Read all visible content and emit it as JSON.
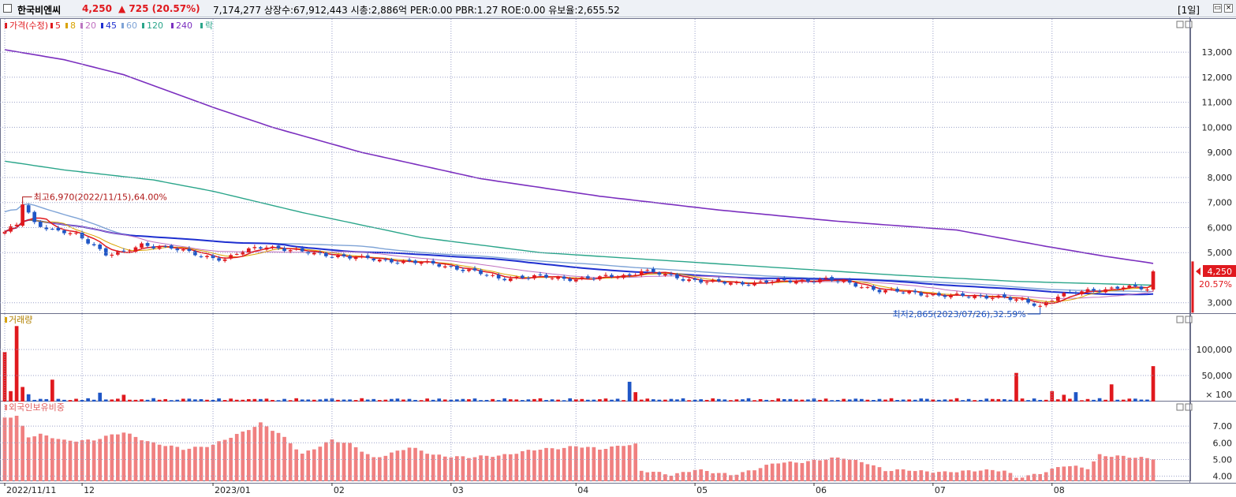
{
  "header": {
    "stock_name": "한국비엔씨",
    "price": "4,250",
    "change": "▲ 725 (20.57%)",
    "stats": "7,174,277  상장수:67,912,443 시총:2,886억 PER:0.00 PBR:1.27 ROE:0.00 유보율:2,655.52",
    "period": "[1일]"
  },
  "colors": {
    "up": "#e0191e",
    "down": "#1f56c6",
    "ma5": "#e0191e",
    "ma8": "#d9a300",
    "ma20": "#c070c0",
    "ma45": "#1e2fd0",
    "ma60": "#7ea3d6",
    "ma120": "#2aa58a",
    "ma240": "#7b2fbf",
    "foreign": "#f08080",
    "grid": "#9aa0c8"
  },
  "chart_data": [
    {
      "type": "line",
      "legend": [
        {
          "label": "가격(수정)",
          "color": "#e0191e"
        },
        {
          "label": "5",
          "color": "#e0191e"
        },
        {
          "label": "8",
          "color": "#d9a300"
        },
        {
          "label": "20",
          "color": "#c070c0"
        },
        {
          "label": "45",
          "color": "#1e2fd0"
        },
        {
          "label": "60",
          "color": "#7ea3d6"
        },
        {
          "label": "120",
          "color": "#2aa58a"
        },
        {
          "label": "240",
          "color": "#7b2fbf"
        },
        {
          "label": "락",
          "color": "#2aa58a"
        }
      ],
      "y_ticks": [
        "13,000",
        "12,000",
        "11,000",
        "10,000",
        "9,000",
        "8,000",
        "7,000",
        "6,000",
        "5,000",
        "3,000"
      ],
      "y_tick_values": [
        13000,
        12000,
        11000,
        10000,
        9000,
        8000,
        7000,
        6000,
        5000,
        3000
      ],
      "ylim": [
        2550,
        13950
      ],
      "x_tick_labels": [
        "2022/11/11",
        "12",
        "2023/01",
        "02",
        "03",
        "04",
        "05",
        "06",
        "07",
        "08"
      ],
      "x_tick_index": [
        0,
        13,
        35,
        55,
        75,
        96,
        116,
        136,
        156,
        176
      ],
      "sessions": 194,
      "series": {
        "close_waypoints": [
          [
            0,
            5800
          ],
          [
            2,
            6100
          ],
          [
            3,
            6970
          ],
          [
            5,
            6200
          ],
          [
            8,
            5900
          ],
          [
            12,
            5700
          ],
          [
            15,
            5300
          ],
          [
            17,
            4950
          ],
          [
            20,
            5000
          ],
          [
            23,
            5300
          ],
          [
            28,
            5200
          ],
          [
            33,
            4850
          ],
          [
            37,
            4750
          ],
          [
            40,
            5050
          ],
          [
            44,
            5250
          ],
          [
            47,
            5150
          ],
          [
            52,
            4950
          ],
          [
            57,
            4850
          ],
          [
            63,
            4700
          ],
          [
            67,
            4650
          ],
          [
            70,
            4600
          ],
          [
            73,
            4500
          ],
          [
            78,
            4300
          ],
          [
            83,
            3950
          ],
          [
            85,
            4000
          ],
          [
            89,
            4050
          ],
          [
            94,
            3950
          ],
          [
            100,
            4000
          ],
          [
            105,
            4100
          ],
          [
            107,
            4300
          ],
          [
            110,
            4150
          ],
          [
            114,
            3950
          ],
          [
            118,
            3850
          ],
          [
            123,
            3750
          ],
          [
            128,
            3850
          ],
          [
            133,
            3850
          ],
          [
            138,
            3950
          ],
          [
            142,
            3750
          ],
          [
            147,
            3500
          ],
          [
            152,
            3400
          ],
          [
            157,
            3300
          ],
          [
            162,
            3250
          ],
          [
            167,
            3250
          ],
          [
            172,
            3000
          ],
          [
            174,
            2865
          ],
          [
            177,
            3300
          ],
          [
            180,
            3400
          ],
          [
            185,
            3550
          ],
          [
            188,
            3650
          ],
          [
            192,
            3525
          ],
          [
            193,
            4250
          ]
        ],
        "ma120_waypoints": [
          [
            0,
            8650
          ],
          [
            10,
            8300
          ],
          [
            25,
            7900
          ],
          [
            35,
            7450
          ],
          [
            50,
            6600
          ],
          [
            70,
            5600
          ],
          [
            90,
            5000
          ],
          [
            110,
            4700
          ],
          [
            130,
            4400
          ],
          [
            150,
            4100
          ],
          [
            170,
            3850
          ],
          [
            193,
            3700
          ]
        ],
        "ma240_waypoints": [
          [
            0,
            13100
          ],
          [
            10,
            12700
          ],
          [
            20,
            12100
          ],
          [
            35,
            10800
          ],
          [
            45,
            10000
          ],
          [
            60,
            9000
          ],
          [
            80,
            7950
          ],
          [
            100,
            7250
          ],
          [
            120,
            6700
          ],
          [
            140,
            6250
          ],
          [
            160,
            5900
          ],
          [
            175,
            5250
          ],
          [
            185,
            4850
          ],
          [
            193,
            4570
          ]
        ]
      },
      "annotations": {
        "high": "최고6,970(2022/11/15),64.00%",
        "low": "최저2,865(2023/07/26),32.59%",
        "last_price": "4,250",
        "last_change": "20.57%"
      }
    },
    {
      "type": "bar",
      "title": "거래량",
      "y_ticks": [
        "100,000",
        "50,000",
        "× 100"
      ],
      "y_tick_values": [
        100000,
        50000,
        0
      ],
      "ylim": [
        0,
        150000
      ],
      "spikes": [
        [
          0,
          95000
        ],
        [
          1,
          20000
        ],
        [
          2,
          145000
        ],
        [
          3,
          28000
        ],
        [
          4,
          14000
        ],
        [
          8,
          42000
        ],
        [
          16,
          17000
        ],
        [
          20,
          13000
        ],
        [
          105,
          38000
        ],
        [
          106,
          18000
        ],
        [
          170,
          55000
        ],
        [
          176,
          20000
        ],
        [
          178,
          13000
        ],
        [
          180,
          18000
        ],
        [
          186,
          33000
        ],
        [
          193,
          68000
        ]
      ]
    },
    {
      "type": "bar",
      "title": "외국인보유비중",
      "y_ticks": [
        "7.00",
        "6.00",
        "5.00",
        "4.00"
      ],
      "y_tick_values": [
        7,
        6,
        5,
        4
      ],
      "ylim": [
        3.7,
        7.9
      ],
      "waypoints": [
        [
          0,
          7.5
        ],
        [
          2,
          7.6
        ],
        [
          4,
          6.4
        ],
        [
          6,
          6.5
        ],
        [
          10,
          6.1
        ],
        [
          15,
          6.2
        ],
        [
          20,
          6.6
        ],
        [
          25,
          6.0
        ],
        [
          30,
          5.6
        ],
        [
          35,
          5.9
        ],
        [
          40,
          6.6
        ],
        [
          43,
          7.2
        ],
        [
          46,
          6.6
        ],
        [
          50,
          5.3
        ],
        [
          55,
          6.2
        ],
        [
          58,
          5.9
        ],
        [
          62,
          5.1
        ],
        [
          68,
          5.7
        ],
        [
          72,
          5.3
        ],
        [
          78,
          5.1
        ],
        [
          84,
          5.3
        ],
        [
          90,
          5.6
        ],
        [
          96,
          5.8
        ],
        [
          100,
          5.6
        ],
        [
          104,
          5.9
        ],
        [
          106,
          5.9
        ],
        [
          107,
          4.3
        ],
        [
          112,
          4.1
        ],
        [
          116,
          4.4
        ],
        [
          119,
          4.2
        ],
        [
          122,
          4.1
        ],
        [
          126,
          4.4
        ],
        [
          130,
          4.8
        ],
        [
          135,
          4.9
        ],
        [
          141,
          5.1
        ],
        [
          145,
          4.8
        ],
        [
          148,
          4.3
        ],
        [
          152,
          4.4
        ],
        [
          158,
          4.2
        ],
        [
          164,
          4.4
        ],
        [
          168,
          4.3
        ],
        [
          170,
          3.9
        ],
        [
          174,
          4.2
        ],
        [
          178,
          4.6
        ],
        [
          182,
          4.5
        ],
        [
          184,
          5.3
        ],
        [
          186,
          5.2
        ],
        [
          190,
          5.1
        ],
        [
          193,
          5.1
        ]
      ]
    }
  ]
}
